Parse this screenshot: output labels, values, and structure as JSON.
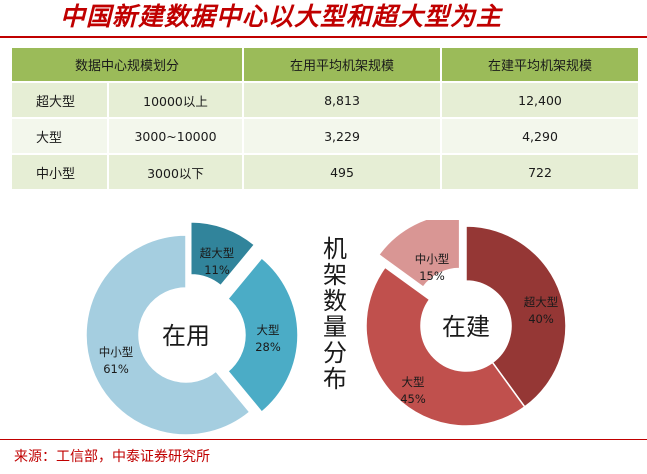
{
  "title": "中国新建数据中心以大型和超大型为主",
  "table": {
    "headers": [
      "数据中心规模划分",
      "在用平均机架规模",
      "在建平均机架规模"
    ],
    "rows": [
      {
        "category": "超大型",
        "range": "10000以上",
        "in_use": "8,813",
        "building": "12,400"
      },
      {
        "category": "大型",
        "range": "3000~10000",
        "in_use": "3,229",
        "building": "4,290"
      },
      {
        "category": "中小型",
        "range": "3000以下",
        "in_use": "495",
        "building": "722"
      }
    ]
  },
  "side_label": [
    "机",
    "架",
    "数",
    "量",
    "分",
    "布"
  ],
  "source": "来源：工信部，中泰证券研究所",
  "chart_data": [
    {
      "type": "pie",
      "variant": "donut-exploded",
      "center_label": "在用",
      "slices": [
        {
          "label": "超大型",
          "value": 11,
          "display": "11%",
          "color": "#31849b"
        },
        {
          "label": "大型",
          "value": 28,
          "display": "28%",
          "color": "#4bacc6"
        },
        {
          "label": "中小型",
          "value": 61,
          "display": "61%",
          "color": "#a5cee0"
        }
      ]
    },
    {
      "type": "pie",
      "variant": "donut-exploded",
      "center_label": "在建",
      "slices": [
        {
          "label": "超大型",
          "value": 40,
          "display": "40%",
          "color": "#953735"
        },
        {
          "label": "大型",
          "value": 45,
          "display": "45%",
          "color": "#c0504d"
        },
        {
          "label": "中小型",
          "value": 15,
          "display": "15%",
          "color": "#d99694"
        }
      ]
    }
  ]
}
